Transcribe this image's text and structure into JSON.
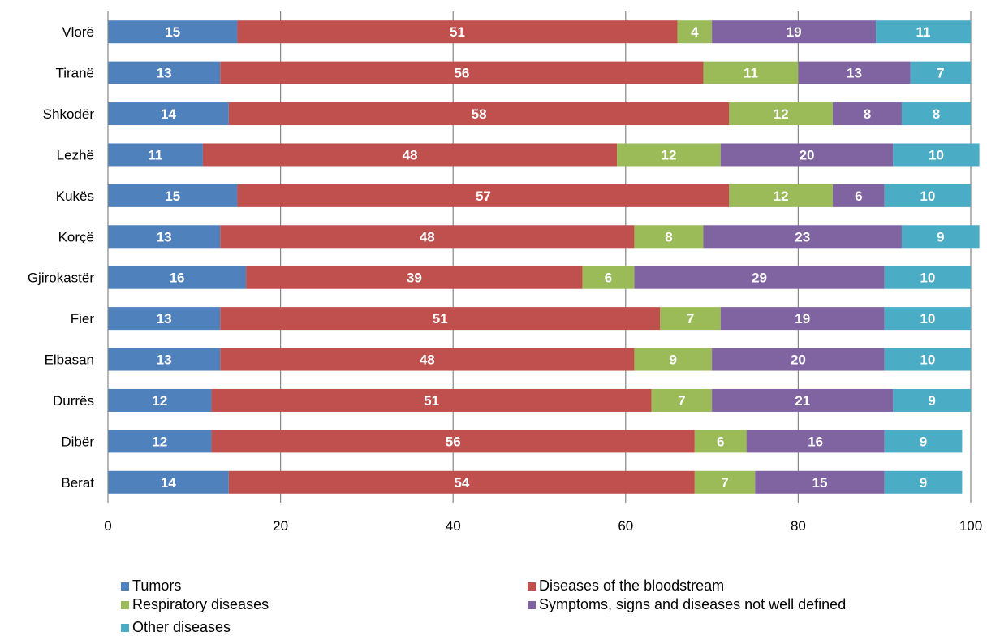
{
  "chart_data": {
    "type": "bar",
    "orientation": "horizontal",
    "stacked": true,
    "categories": [
      "Vlorë",
      "Tiranë",
      "Shkodër",
      "Lezhë",
      "Kukës",
      "Korçë",
      "Gjirokastër",
      "Fier",
      "Elbasan",
      "Durrës",
      "Dibër",
      "Berat"
    ],
    "series": [
      {
        "name": "Tumors",
        "color": "#4f81bd",
        "values": [
          15,
          13,
          14,
          11,
          15,
          13,
          16,
          13,
          13,
          12,
          12,
          14
        ]
      },
      {
        "name": "Diseases of the bloodstream",
        "color": "#c0504d",
        "values": [
          51,
          56,
          58,
          48,
          57,
          48,
          39,
          51,
          48,
          51,
          56,
          54
        ]
      },
      {
        "name": "Respiratory diseases",
        "color": "#9bbb59",
        "values": [
          4,
          11,
          12,
          12,
          12,
          8,
          6,
          7,
          9,
          7,
          6,
          7
        ]
      },
      {
        "name": "Symptoms, signs and diseases not well defined",
        "color": "#8064a2",
        "values": [
          19,
          13,
          8,
          20,
          6,
          23,
          29,
          19,
          20,
          21,
          16,
          15
        ]
      },
      {
        "name": "Other diseases",
        "color": "#4bacc6",
        "values": [
          11,
          7,
          8,
          10,
          10,
          9,
          10,
          10,
          10,
          9,
          9,
          9
        ]
      }
    ],
    "xlim": [
      0,
      100
    ],
    "xticks": [
      "0",
      "20",
      "40",
      "60",
      "80",
      "100"
    ],
    "grid": true,
    "legend_position": "bottom",
    "title": "",
    "xlabel": "",
    "ylabel": ""
  }
}
